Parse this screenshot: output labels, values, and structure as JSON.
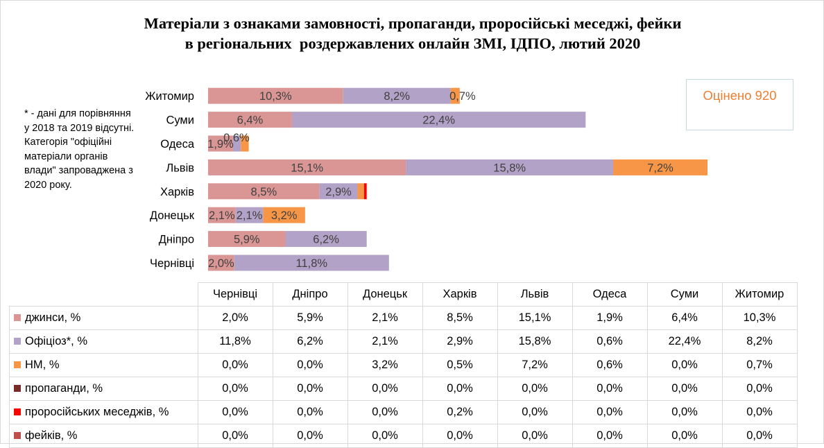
{
  "title_lines": [
    "Матеріали з ознаками замовності, пропаганди, проросійські меседжі, фейки",
    "в регіональних  роздержавлених онлайн ЗМІ, ІДПО, лютий 2020"
  ],
  "note": "* - дані для порівняння у 2018 та 2019 відсутні. Категорія \"офіційні матеріали органів влади\" запроваджена з 2020 року.",
  "estimate_text": "Оцінено 920",
  "chart_data": {
    "type": "bar",
    "orientation": "horizontal",
    "stacked": true,
    "title": "Матеріали з ознаками замовності, пропаганди, проросійські меседжі, фейки в регіональних  роздержавлених онлайн ЗМІ, ІДПО, лютий 2020",
    "categories": [
      "Чернівці",
      "Дніпро",
      "Донецьк",
      "Харків",
      "Львів",
      "Одеса",
      "Суми",
      "Житомир"
    ],
    "category_order_in_plot": "bottom-to-top",
    "series": [
      {
        "name": "джинси, %",
        "color": "#d99694",
        "values": [
          2.0,
          5.9,
          2.1,
          8.5,
          15.1,
          1.9,
          6.4,
          10.3
        ],
        "display": [
          "2,0%",
          "5,9%",
          "2,1%",
          "8,5%",
          "15,1%",
          "1,9%",
          "6,4%",
          "10,3%"
        ]
      },
      {
        "name": "Офіціоз*, %",
        "color": "#b3a2c7",
        "values": [
          11.8,
          6.2,
          2.1,
          2.9,
          15.8,
          0.6,
          22.4,
          8.2
        ],
        "display": [
          "11,8%",
          "6,2%",
          "2,1%",
          "2,9%",
          "15,8%",
          "0,6%",
          "22,4%",
          "8,2%"
        ]
      },
      {
        "name": "НМ, %",
        "color": "#f79646",
        "values": [
          0.0,
          0.0,
          3.2,
          0.5,
          7.2,
          0.6,
          0.0,
          0.7
        ],
        "display": [
          "0,0%",
          "0,0%",
          "3,2%",
          "0,5%",
          "7,2%",
          "0,6%",
          "0,0%",
          "0,7%"
        ]
      },
      {
        "name": "пропаганди, %",
        "color": "#772c2a",
        "values": [
          0.0,
          0.0,
          0.0,
          0.0,
          0.0,
          0.0,
          0.0,
          0.0
        ],
        "display": [
          "0,0%",
          "0,0%",
          "0,0%",
          "0,0%",
          "0,0%",
          "0,0%",
          "0,0%",
          "0,0%"
        ]
      },
      {
        "name": "проросійських меседжів, %",
        "color": "#ff0000",
        "values": [
          0.0,
          0.0,
          0.0,
          0.2,
          0.0,
          0.0,
          0.0,
          0.0
        ],
        "display": [
          "0,0%",
          "0,0%",
          "0,0%",
          "0,2%",
          "0,0%",
          "0,0%",
          "0,0%",
          "0,0%"
        ]
      },
      {
        "name": "фейків, %",
        "color": "#c0504d",
        "values": [
          0.0,
          0.0,
          0.0,
          0.0,
          0.0,
          0.0,
          0.0,
          0.0
        ],
        "display": [
          "0,0%",
          "0,0%",
          "0,0%",
          "0,0%",
          "0,0%",
          "0,0%",
          "0,0%",
          "0,0%"
        ]
      }
    ],
    "grid": false,
    "legend": "data table below chart"
  }
}
